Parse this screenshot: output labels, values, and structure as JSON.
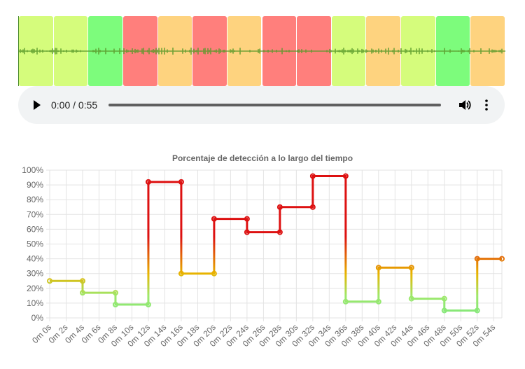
{
  "waveform": {
    "segments": [
      {
        "color": "#d5fc7c"
      },
      {
        "color": "#d5fc7c"
      },
      {
        "color": "#7dfc7c"
      },
      {
        "color": "#ff7f7c"
      },
      {
        "color": "#fed37f"
      },
      {
        "color": "#ff7f7c"
      },
      {
        "color": "#fed37f"
      },
      {
        "color": "#ff7f7c"
      },
      {
        "color": "#ff7f7c"
      },
      {
        "color": "#d5fc7c"
      },
      {
        "color": "#fed37f"
      },
      {
        "color": "#d5fc7c"
      },
      {
        "color": "#7dfc7c"
      },
      {
        "color": "#fed37f"
      }
    ]
  },
  "player": {
    "time": "0:00 / 0:55"
  },
  "chart_data": {
    "type": "line",
    "stepped": true,
    "title": "Porcentaje de detección a lo largo del tiempo",
    "xlabel": "",
    "ylabel": "",
    "x_unit": "seconds",
    "xlim": [
      0,
      55
    ],
    "ylim": [
      0,
      100
    ],
    "y_ticks": [
      "0%",
      "10%",
      "20%",
      "30%",
      "40%",
      "50%",
      "60%",
      "70%",
      "80%",
      "90%",
      "100%"
    ],
    "x_ticks": [
      "0m 0s",
      "0m 2s",
      "0m 4s",
      "0m 6s",
      "0m 8s",
      "0m 10s",
      "0m 12s",
      "0m 14s",
      "0m 16s",
      "0m 18s",
      "0m 20s",
      "0m 22s",
      "0m 24s",
      "0m 26s",
      "0m 28s",
      "0m 30s",
      "0m 32s",
      "0m 34s",
      "0m 36s",
      "0m 38s",
      "0m 40s",
      "0m 42s",
      "0m 44s",
      "0m 46s",
      "0m 48s",
      "0m 50s",
      "0m 52s",
      "0m 54s"
    ],
    "x": [
      0,
      4,
      8,
      12,
      16,
      20,
      24,
      28,
      32,
      36,
      40,
      44,
      48,
      52,
      55
    ],
    "values": [
      25,
      17,
      9,
      92,
      30,
      67,
      58,
      75,
      96,
      11,
      34,
      13,
      5,
      40,
      40
    ],
    "grid": true,
    "colors": {
      "low": "#7ee87e",
      "mid": "#e8b400",
      "high": "#dd1111"
    }
  }
}
